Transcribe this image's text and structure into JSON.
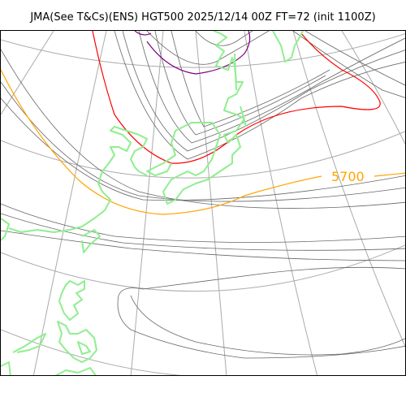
{
  "title": "JMA(See T&Cs)(ENS) HGT500 2025/12/14 00Z FT=72 (init 1100Z)",
  "colors": {
    "coastline": "#90EE90",
    "graticule": "#aaaaaa",
    "contour_default": "#666666",
    "contour_5700": "#FFA500",
    "contour_5400": "#FF0000",
    "contour_5100": "#800080"
  },
  "contour_labels": [
    {
      "text": "5700",
      "color": "#FFA500"
    }
  ]
}
